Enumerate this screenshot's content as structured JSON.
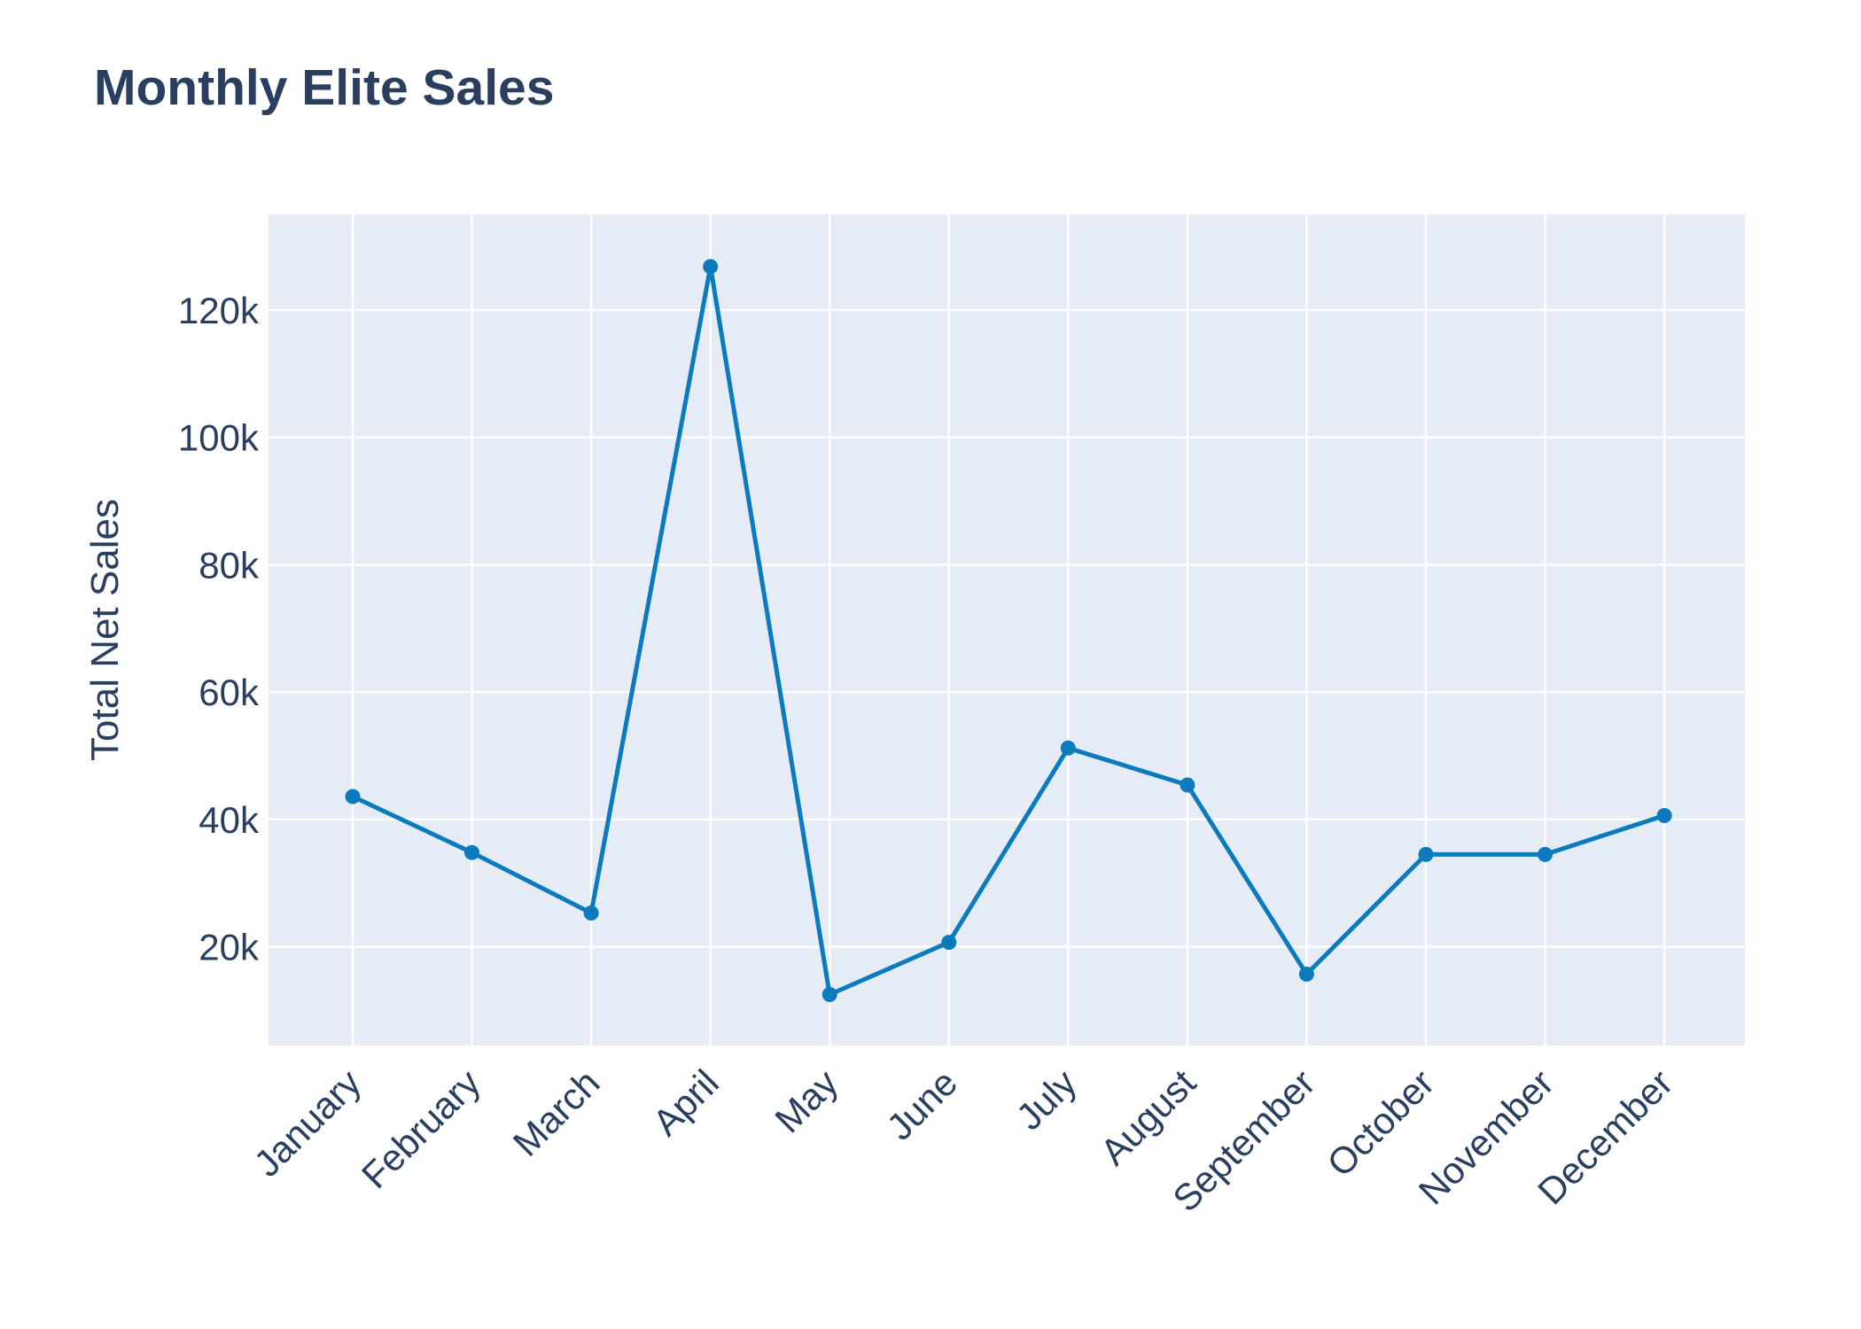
{
  "chart_data": {
    "type": "line",
    "title": "Monthly Elite Sales",
    "xlabel": "",
    "ylabel": "Total Net Sales",
    "categories": [
      "January",
      "February",
      "March",
      "April",
      "May",
      "June",
      "July",
      "August",
      "September",
      "October",
      "November",
      "December"
    ],
    "series": [
      {
        "values": [
          43600,
          34800,
          25300,
          126800,
          12500,
          20700,
          51200,
          45400,
          15700,
          34500,
          34500,
          40600
        ]
      }
    ],
    "ylim": [
      4500,
      135000
    ],
    "yticks": [
      20000,
      40000,
      60000,
      80000,
      100000,
      120000
    ],
    "ytick_labels": [
      "20k",
      "40k",
      "60k",
      "80k",
      "100k",
      "120k"
    ],
    "grid": true,
    "markers": true,
    "colors": {
      "line": "#0b7bbd",
      "plot_background": "#e5ecf6",
      "grid": "#ffffff",
      "text": "#2a3f5f"
    }
  }
}
